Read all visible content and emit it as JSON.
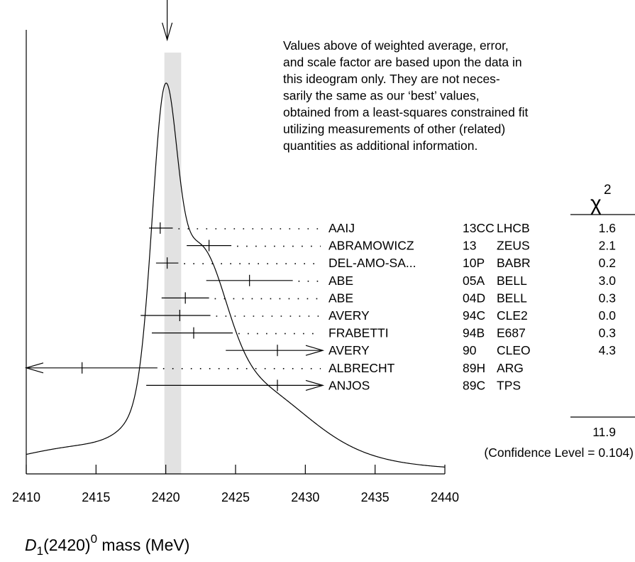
{
  "chart_data": {
    "type": "ideogram",
    "xlabel": {
      "symbol": "D",
      "subscript": "1",
      "argument": "(2420)",
      "superscript": "0",
      "rest": " mass (MeV)"
    },
    "xlim": [
      2410,
      2440
    ],
    "xticks": [
      2410,
      2415,
      2420,
      2425,
      2430,
      2435,
      2440
    ],
    "weighted_average": 2420.1,
    "band_range": [
      2419.9,
      2421.1
    ],
    "note_lines": [
      "Values above of weighted average, error,",
      "and scale factor are based upon the data in",
      "this ideogram only.  They are not neces-",
      "sarily the same as our ‘best’ values,",
      "obtained from a least-squares constrained fit",
      "utilizing measurements of other (related)",
      "quantities as additional information."
    ],
    "chi2_symbol": "χ",
    "chi2_power": "2",
    "measurements": [
      {
        "author": "AAIJ",
        "year": "13CC",
        "experiment": "LHCB",
        "chi2": "1.6",
        "value": 2419.6,
        "low": 2418.8,
        "high": 2420.5
      },
      {
        "author": "ABRAMOWICZ",
        "year": "13",
        "experiment": "ZEUS",
        "chi2": "2.1",
        "value": 2423.1,
        "low": 2421.5,
        "high": 2424.7
      },
      {
        "author": "DEL-AMO-SA...",
        "year": "10P",
        "experiment": "BABR",
        "chi2": "0.2",
        "value": 2420.1,
        "low": 2419.3,
        "high": 2420.9
      },
      {
        "author": "ABE",
        "year": "05A",
        "experiment": "BELL",
        "chi2": "3.0",
        "value": 2426.0,
        "low": 2422.9,
        "high": 2429.1
      },
      {
        "author": "ABE",
        "year": "04D",
        "experiment": "BELL",
        "chi2": "0.3",
        "value": 2421.4,
        "low": 2419.7,
        "high": 2423.1
      },
      {
        "author": "AVERY",
        "year": "94C",
        "experiment": "CLE2",
        "chi2": "0.0",
        "value": 2421.0,
        "low": 2418.2,
        "high": 2423.2
      },
      {
        "author": "FRABETTI",
        "year": "94B",
        "experiment": "E687",
        "chi2": "0.3",
        "value": 2422.0,
        "low": 2419.0,
        "high": 2424.8
      },
      {
        "author": "AVERY",
        "year": "90",
        "experiment": "CLEO",
        "chi2": "4.3",
        "value": 2428.0,
        "low": 2424.3,
        "high": 2431.7
      },
      {
        "author": "ALBRECHT",
        "year": "89H",
        "experiment": "ARG",
        "chi2": "",
        "value": 2414.0,
        "low": 2410.0,
        "high": 2419.4
      },
      {
        "author": "ANJOS",
        "year": "89C",
        "experiment": "TPS",
        "chi2": "",
        "value": 2428.0,
        "low": 2418.6,
        "high": 2432.0
      }
    ],
    "chi2_total": "11.9",
    "confidence_text": "(Confidence Level = 0.104)"
  }
}
